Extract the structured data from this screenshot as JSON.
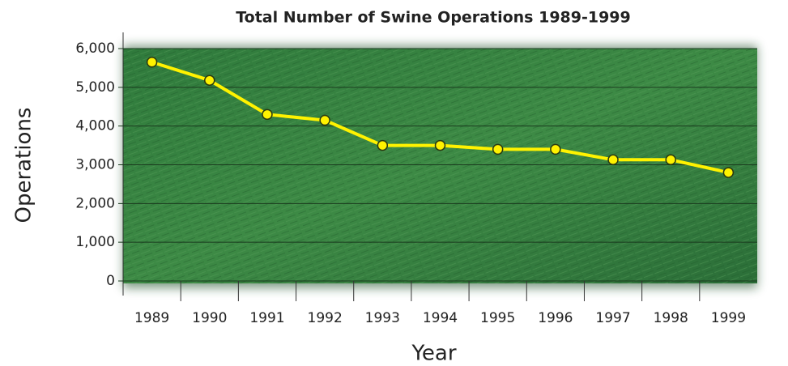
{
  "chart_data": {
    "type": "line",
    "title": "Total Number of Swine Operations 1989-1999",
    "x_label": "Year",
    "y_label": "Operations",
    "categories": [
      "1989",
      "1990",
      "1991",
      "1992",
      "1993",
      "1994",
      "1995",
      "1996",
      "1997",
      "1998",
      "1999"
    ],
    "series": [
      {
        "name": "Operations",
        "color": "#fff200",
        "values": [
          5650,
          5180,
          4300,
          4150,
          3500,
          3500,
          3400,
          3400,
          3130,
          3130,
          2800
        ]
      }
    ],
    "ylim": [
      0,
      6000
    ],
    "yticks": [
      0,
      {
        "value": 1000,
        "label": "1,000"
      },
      {
        "value": 2000,
        "label": "2,000"
      },
      {
        "value": 3000,
        "label": "3,000"
      },
      {
        "value": 4000,
        "label": "4,000"
      },
      {
        "value": 5000,
        "label": "5,000"
      },
      {
        "value": 6000,
        "label": "6,000"
      }
    ],
    "grid": true
  }
}
